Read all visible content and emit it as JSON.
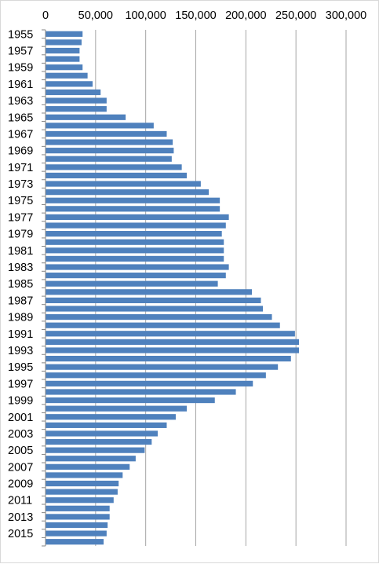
{
  "chart_data": {
    "type": "bar",
    "orientation": "horizontal",
    "title": "",
    "xlabel": "",
    "ylabel": "",
    "xlim": [
      0,
      300000
    ],
    "x_ticks": [
      0,
      50000,
      100000,
      150000,
      200000,
      250000,
      300000
    ],
    "x_tick_labels": [
      "0",
      "50,000",
      "100,000",
      "150,000",
      "200,000",
      "250,000",
      "300,000"
    ],
    "x_axis_position": "top",
    "grid": "vertical",
    "legend": "none",
    "bar_color": "#4F81BD",
    "categories": [
      "1955",
      "1956",
      "1957",
      "1958",
      "1959",
      "1960",
      "1961",
      "1962",
      "1963",
      "1964",
      "1965",
      "1966",
      "1967",
      "1968",
      "1969",
      "1970",
      "1971",
      "1972",
      "1973",
      "1974",
      "1975",
      "1976",
      "1977",
      "1978",
      "1979",
      "1980",
      "1981",
      "1982",
      "1983",
      "1984",
      "1985",
      "1986",
      "1987",
      "1988",
      "1989",
      "1990",
      "1991",
      "1992",
      "1993",
      "1994",
      "1995",
      "1996",
      "1997",
      "1998",
      "1999",
      "2000",
      "2001",
      "2002",
      "2003",
      "2004",
      "2005",
      "2006",
      "2007",
      "2008",
      "2009",
      "2010",
      "2011",
      "2012",
      "2013",
      "2014",
      "2015",
      "2016"
    ],
    "category_labels_shown": [
      "1955",
      "",
      "1957",
      "",
      "1959",
      "",
      "1961",
      "",
      "1963",
      "",
      "1965",
      "",
      "1967",
      "",
      "1969",
      "",
      "1971",
      "",
      "1973",
      "",
      "1975",
      "",
      "1977",
      "",
      "1979",
      "",
      "1981",
      "",
      "1983",
      "",
      "1985",
      "",
      "1987",
      "",
      "1989",
      "",
      "1991",
      "",
      "1993",
      "",
      "1995",
      "",
      "1997",
      "",
      "1999",
      "",
      "2001",
      "",
      "2003",
      "",
      "2005",
      "",
      "2007",
      "",
      "2009",
      "",
      "2011",
      "",
      "2013",
      "",
      "2015",
      ""
    ],
    "values": [
      37000,
      36000,
      34000,
      34000,
      37000,
      42000,
      47000,
      55000,
      61000,
      61000,
      80000,
      108000,
      121000,
      127000,
      128000,
      126000,
      136000,
      141000,
      155000,
      163000,
      174000,
      174000,
      183000,
      180000,
      176000,
      178000,
      178000,
      178000,
      183000,
      180000,
      172000,
      206000,
      215000,
      217000,
      226000,
      234000,
      249000,
      253000,
      253000,
      245000,
      232000,
      220000,
      207000,
      190000,
      169000,
      141000,
      130000,
      121000,
      112000,
      106000,
      99000,
      90000,
      84000,
      77000,
      73000,
      72000,
      68000,
      64000,
      64000,
      62000,
      61000,
      58000
    ]
  }
}
